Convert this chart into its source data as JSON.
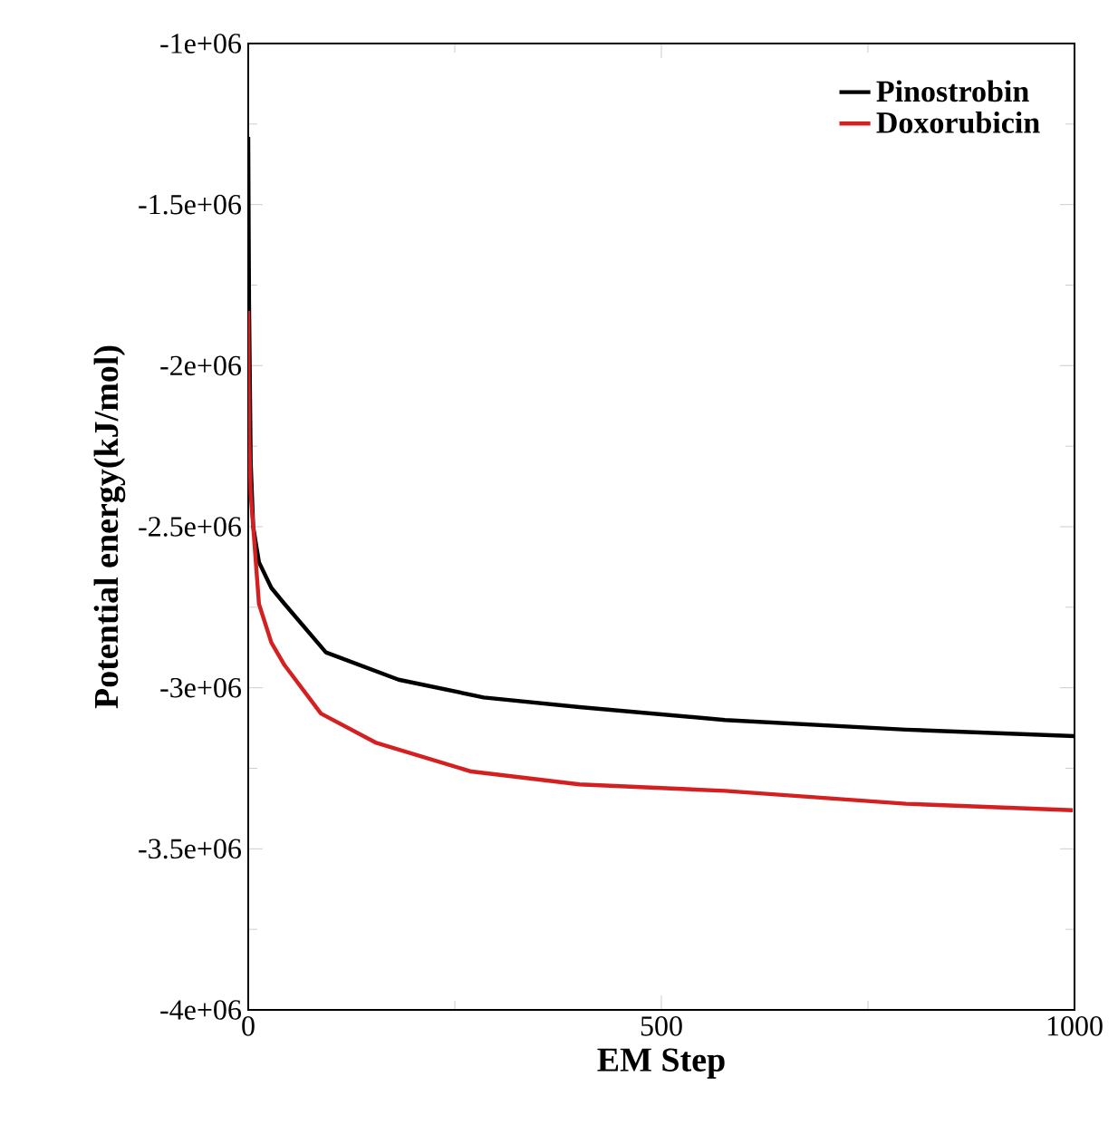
{
  "chart_data": {
    "type": "line",
    "xlabel": "EM Step",
    "ylabel": "Potential energy(kJ/mol)",
    "xlim": [
      0,
      1000
    ],
    "xticks": [
      0,
      500,
      1000
    ],
    "ylim": [
      -4000000,
      -1000000
    ],
    "yticks": [
      {
        "value": -1000000,
        "label": "-1e+06"
      },
      {
        "value": -1500000,
        "label": "-1.5e+06"
      },
      {
        "value": -2000000,
        "label": "-2e+06"
      },
      {
        "value": -2500000,
        "label": "-2.5e+06"
      },
      {
        "value": -3000000,
        "label": "-3e+06"
      },
      {
        "value": -3500000,
        "label": "-3.5e+06"
      },
      {
        "value": -4000000,
        "label": "-4e+06"
      }
    ],
    "legend": "top right",
    "grid": false,
    "marker": "none",
    "line_style": "solid",
    "series": [
      {
        "name": "Pinostrobin",
        "color": "#000000",
        "x": [
          0,
          1,
          3,
          6,
          13,
          28,
          44,
          94,
          182,
          285,
          401,
          577,
          796,
          1000
        ],
        "values": [
          -1290000,
          -1800000,
          -2300000,
          -2500000,
          -2610000,
          -2690000,
          -2740000,
          -2890000,
          -2975000,
          -3030000,
          -3060000,
          -3100000,
          -3130000,
          -3150000
        ]
      },
      {
        "name": "Doxorubicin",
        "color": "#d42020",
        "x": [
          0,
          1,
          3,
          6,
          13,
          28,
          44,
          88,
          154,
          270,
          401,
          577,
          796,
          998
        ],
        "values": [
          -1830000,
          -2200000,
          -2400000,
          -2500000,
          -2740000,
          -2860000,
          -2930000,
          -3080000,
          -3170000,
          -3260000,
          -3300000,
          -3320000,
          -3360000,
          -3380000
        ]
      }
    ]
  }
}
